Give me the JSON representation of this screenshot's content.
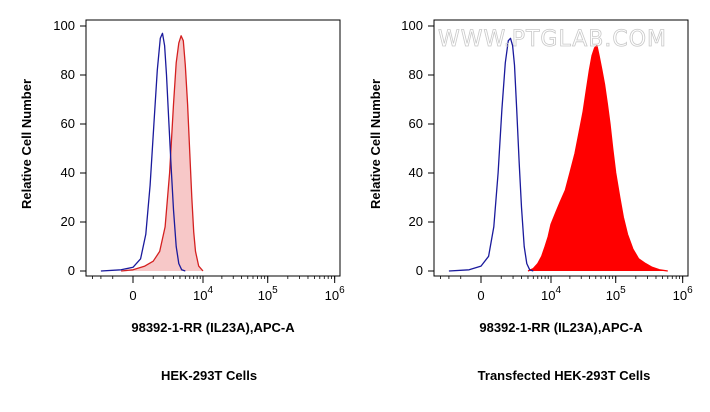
{
  "watermark": "WWW.PTGLAB.COM",
  "chart_data": [
    {
      "type": "area",
      "panel": "left",
      "title": "HEK-293T Cells",
      "xlabel": "98392-1-RR (IL23A),APC-A",
      "ylabel": "Relative Cell Number",
      "x_scale": "biexponential",
      "y_ticks": [
        0,
        20,
        40,
        60,
        80,
        100
      ],
      "x_tick_labels": [
        {
          "value": 0,
          "base": "0",
          "exp": ""
        },
        {
          "value": 10000,
          "base": "10",
          "exp": "4"
        },
        {
          "value": 100000,
          "base": "10",
          "exp": "5"
        },
        {
          "value": 1000000,
          "base": "10",
          "exp": "6"
        }
      ],
      "ylim": [
        0,
        100
      ],
      "series": [
        {
          "color": "#1a1a9c",
          "fill": "none",
          "points": [
            [
              -2000,
              0
            ],
            [
              -500,
              0.5
            ],
            [
              0,
              1.5
            ],
            [
              300,
              5
            ],
            [
              550,
              15
            ],
            [
              800,
              35
            ],
            [
              1050,
              60
            ],
            [
              1300,
              82
            ],
            [
              1550,
              95
            ],
            [
              1750,
              97
            ],
            [
              1950,
              92
            ],
            [
              2150,
              80
            ],
            [
              2400,
              62
            ],
            [
              2700,
              42
            ],
            [
              3000,
              25
            ],
            [
              3400,
              10
            ],
            [
              3800,
              3
            ],
            [
              4300,
              0.5
            ],
            [
              5000,
              0
            ]
          ]
        },
        {
          "color": "#d42020",
          "fill": "#f7c8c8",
          "points": [
            [
              -500,
              0
            ],
            [
              0,
              0.5
            ],
            [
              500,
              2
            ],
            [
              1000,
              4
            ],
            [
              1500,
              8
            ],
            [
              2000,
              18
            ],
            [
              2500,
              40
            ],
            [
              3000,
              68
            ],
            [
              3400,
              85
            ],
            [
              3800,
              93
            ],
            [
              4200,
              96
            ],
            [
              4600,
              94
            ],
            [
              5000,
              84
            ],
            [
              5500,
              68
            ],
            [
              6000,
              48
            ],
            [
              6500,
              30
            ],
            [
              7000,
              16
            ],
            [
              7500,
              8
            ],
            [
              8500,
              2
            ],
            [
              10000,
              0
            ]
          ]
        }
      ]
    },
    {
      "type": "area",
      "panel": "right",
      "title": "Transfected HEK-293T Cells",
      "xlabel": "98392-1-RR (IL23A),APC-A",
      "ylabel": "Relative Cell Number",
      "x_scale": "biexponential",
      "y_ticks": [
        0,
        20,
        40,
        60,
        80,
        100
      ],
      "x_tick_labels": [
        {
          "value": 0,
          "base": "0",
          "exp": ""
        },
        {
          "value": 10000,
          "base": "10",
          "exp": "4"
        },
        {
          "value": 100000,
          "base": "10",
          "exp": "5"
        },
        {
          "value": 1000000,
          "base": "10",
          "exp": "6"
        }
      ],
      "ylim": [
        0,
        100
      ],
      "series": [
        {
          "color": "#1a1a9c",
          "fill": "none",
          "points": [
            [
              -2000,
              0
            ],
            [
              -500,
              0.5
            ],
            [
              0,
              2
            ],
            [
              300,
              6
            ],
            [
              550,
              18
            ],
            [
              800,
              40
            ],
            [
              1050,
              66
            ],
            [
              1300,
              85
            ],
            [
              1550,
              94
            ],
            [
              1750,
              95
            ],
            [
              1950,
              92
            ],
            [
              2150,
              84
            ],
            [
              2400,
              66
            ],
            [
              2700,
              44
            ],
            [
              3000,
              26
            ],
            [
              3400,
              10
            ],
            [
              3800,
              3
            ],
            [
              4300,
              0.5
            ],
            [
              5000,
              0
            ]
          ]
        },
        {
          "color": "#ff0000",
          "fill": "#ff0000",
          "points": [
            [
              4000,
              0
            ],
            [
              5000,
              1
            ],
            [
              6000,
              3
            ],
            [
              7000,
              6
            ],
            [
              8000,
              10
            ],
            [
              9000,
              14
            ],
            [
              10000,
              19
            ],
            [
              12000,
              24
            ],
            [
              14000,
              28
            ],
            [
              17000,
              33
            ],
            [
              20000,
              40
            ],
            [
              24000,
              48
            ],
            [
              28000,
              57
            ],
            [
              32000,
              65
            ],
            [
              36000,
              74
            ],
            [
              40000,
              82
            ],
            [
              44000,
              88
            ],
            [
              48000,
              91
            ],
            [
              52000,
              92
            ],
            [
              56000,
              88
            ],
            [
              62000,
              82
            ],
            [
              68000,
              76
            ],
            [
              75000,
              68
            ],
            [
              82000,
              60
            ],
            [
              90000,
              50
            ],
            [
              100000,
              40
            ],
            [
              115000,
              30
            ],
            [
              130000,
              22
            ],
            [
              150000,
              15
            ],
            [
              180000,
              9
            ],
            [
              220000,
              5
            ],
            [
              280000,
              3
            ],
            [
              350000,
              1.5
            ],
            [
              450000,
              0.5
            ],
            [
              600000,
              0
            ]
          ]
        }
      ]
    }
  ]
}
